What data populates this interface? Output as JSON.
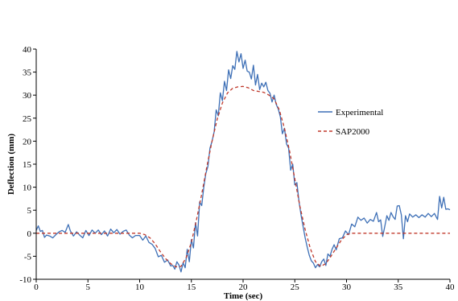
{
  "chart_data": {
    "type": "line",
    "title": "",
    "xlabel": "Time (sec)",
    "ylabel": "Deflection (mm)",
    "xlim": [
      0,
      40
    ],
    "ylim": [
      -10,
      40
    ],
    "x_ticks": [
      0,
      5,
      10,
      15,
      20,
      25,
      30,
      35,
      40
    ],
    "y_ticks": [
      -10,
      -5,
      0,
      5,
      10,
      15,
      20,
      25,
      30,
      35,
      40
    ],
    "grid": false,
    "legend_position": "right",
    "series": [
      {
        "name": "Experimental",
        "color": "#3d6fb6",
        "style": "solid",
        "points": [
          [
            0.0,
            0.6
          ],
          [
            0.2,
            1.6
          ],
          [
            0.4,
            0.4
          ],
          [
            0.6,
            0.6
          ],
          [
            0.8,
            -0.9
          ],
          [
            1.0,
            -0.4
          ],
          [
            1.3,
            -0.6
          ],
          [
            1.6,
            -1.0
          ],
          [
            1.9,
            -0.3
          ],
          [
            2.2,
            0.3
          ],
          [
            2.5,
            0.6
          ],
          [
            2.8,
            0.2
          ],
          [
            3.1,
            1.9
          ],
          [
            3.3,
            0.5
          ],
          [
            3.6,
            -0.6
          ],
          [
            3.9,
            0.3
          ],
          [
            4.2,
            -0.4
          ],
          [
            4.5,
            -1.0
          ],
          [
            4.8,
            0.6
          ],
          [
            5.1,
            -0.5
          ],
          [
            5.4,
            0.7
          ],
          [
            5.7,
            0.0
          ],
          [
            6.0,
            0.7
          ],
          [
            6.3,
            -0.3
          ],
          [
            6.6,
            0.5
          ],
          [
            6.9,
            -0.6
          ],
          [
            7.2,
            0.9
          ],
          [
            7.5,
            0.1
          ],
          [
            7.8,
            0.8
          ],
          [
            8.1,
            -0.2
          ],
          [
            8.4,
            0.4
          ],
          [
            8.7,
            0.7
          ],
          [
            9.0,
            -0.4
          ],
          [
            9.3,
            -1.0
          ],
          [
            9.6,
            -0.5
          ],
          [
            10.0,
            -0.5
          ],
          [
            10.3,
            -1.5
          ],
          [
            10.6,
            -0.6
          ],
          [
            10.9,
            -2.0
          ],
          [
            11.2,
            -2.4
          ],
          [
            11.5,
            -3.3
          ],
          [
            11.8,
            -5.1
          ],
          [
            12.1,
            -4.8
          ],
          [
            12.4,
            -6.3
          ],
          [
            12.7,
            -5.8
          ],
          [
            13.0,
            -7.1
          ],
          [
            13.2,
            -7.0
          ],
          [
            13.4,
            -7.8
          ],
          [
            13.6,
            -6.2
          ],
          [
            13.8,
            -6.9
          ],
          [
            14.0,
            -8.4
          ],
          [
            14.2,
            -6.4
          ],
          [
            14.4,
            -7.5
          ],
          [
            14.6,
            -3.5
          ],
          [
            14.8,
            -6.2
          ],
          [
            15.0,
            -1.4
          ],
          [
            15.2,
            -3.2
          ],
          [
            15.4,
            2.3
          ],
          [
            15.6,
            -0.6
          ],
          [
            15.8,
            6.8
          ],
          [
            16.0,
            6.0
          ],
          [
            16.2,
            10.0
          ],
          [
            16.4,
            13.0
          ],
          [
            16.6,
            14.5
          ],
          [
            16.8,
            18.5
          ],
          [
            17.0,
            20.0
          ],
          [
            17.2,
            22.0
          ],
          [
            17.4,
            26.8
          ],
          [
            17.6,
            25.5
          ],
          [
            17.8,
            30.5
          ],
          [
            18.0,
            28.8
          ],
          [
            18.2,
            33.0
          ],
          [
            18.4,
            31.0
          ],
          [
            18.6,
            35.5
          ],
          [
            18.8,
            33.6
          ],
          [
            19.0,
            36.4
          ],
          [
            19.2,
            35.6
          ],
          [
            19.4,
            39.5
          ],
          [
            19.6,
            37.2
          ],
          [
            19.8,
            39.0
          ],
          [
            20.0,
            35.8
          ],
          [
            20.2,
            37.6
          ],
          [
            20.4,
            35.2
          ],
          [
            20.6,
            35.0
          ],
          [
            20.8,
            33.5
          ],
          [
            21.0,
            36.5
          ],
          [
            21.2,
            32.2
          ],
          [
            21.4,
            34.5
          ],
          [
            21.6,
            31.2
          ],
          [
            21.8,
            32.6
          ],
          [
            22.0,
            31.8
          ],
          [
            22.2,
            32.8
          ],
          [
            22.4,
            31.0
          ],
          [
            22.6,
            30.4
          ],
          [
            22.8,
            28.5
          ],
          [
            23.0,
            30.0
          ],
          [
            23.2,
            28.0
          ],
          [
            23.4,
            27.0
          ],
          [
            23.6,
            25.3
          ],
          [
            23.8,
            21.6
          ],
          [
            24.0,
            22.8
          ],
          [
            24.2,
            19.4
          ],
          [
            24.4,
            18.5
          ],
          [
            24.6,
            13.7
          ],
          [
            24.8,
            15.0
          ],
          [
            25.0,
            10.5
          ],
          [
            25.2,
            11.0
          ],
          [
            25.4,
            7.0
          ],
          [
            25.6,
            4.0
          ],
          [
            25.8,
            1.5
          ],
          [
            26.0,
            -1.0
          ],
          [
            26.2,
            -3.0
          ],
          [
            26.4,
            -4.8
          ],
          [
            26.6,
            -6.0
          ],
          [
            26.8,
            -6.5
          ],
          [
            27.0,
            -7.5
          ],
          [
            27.2,
            -6.8
          ],
          [
            27.4,
            -7.3
          ],
          [
            27.6,
            -6.2
          ],
          [
            27.8,
            -5.6
          ],
          [
            28.0,
            -7.0
          ],
          [
            28.2,
            -4.5
          ],
          [
            28.4,
            -5.0
          ],
          [
            28.6,
            -3.5
          ],
          [
            28.8,
            -2.5
          ],
          [
            29.0,
            -3.6
          ],
          [
            29.3,
            -1.2
          ],
          [
            29.6,
            -1.0
          ],
          [
            29.9,
            0.5
          ],
          [
            30.2,
            -0.3
          ],
          [
            30.5,
            2.0
          ],
          [
            30.8,
            1.4
          ],
          [
            31.1,
            3.5
          ],
          [
            31.4,
            2.8
          ],
          [
            31.7,
            3.3
          ],
          [
            32.0,
            2.2
          ],
          [
            32.3,
            3.0
          ],
          [
            32.6,
            2.6
          ],
          [
            32.9,
            4.5
          ],
          [
            33.1,
            2.5
          ],
          [
            33.3,
            2.9
          ],
          [
            33.5,
            -0.7
          ],
          [
            33.7,
            1.5
          ],
          [
            33.9,
            3.8
          ],
          [
            34.1,
            2.8
          ],
          [
            34.3,
            4.5
          ],
          [
            34.5,
            3.6
          ],
          [
            34.7,
            3.0
          ],
          [
            34.9,
            5.9
          ],
          [
            35.1,
            6.0
          ],
          [
            35.3,
            4.0
          ],
          [
            35.5,
            -1.2
          ],
          [
            35.7,
            3.8
          ],
          [
            35.9,
            2.5
          ],
          [
            36.1,
            4.2
          ],
          [
            36.4,
            3.5
          ],
          [
            36.7,
            4.0
          ],
          [
            37.0,
            3.4
          ],
          [
            37.3,
            4.0
          ],
          [
            37.6,
            3.5
          ],
          [
            37.9,
            4.3
          ],
          [
            38.2,
            3.6
          ],
          [
            38.5,
            4.3
          ],
          [
            38.8,
            3.0
          ],
          [
            39.0,
            8.0
          ],
          [
            39.2,
            5.5
          ],
          [
            39.4,
            7.8
          ],
          [
            39.6,
            5.2
          ],
          [
            39.8,
            5.3
          ],
          [
            40.0,
            5.1
          ]
        ]
      },
      {
        "name": "SAP2000",
        "color": "#c0392b",
        "style": "dashed",
        "points": [
          [
            0.0,
            0.0
          ],
          [
            1.0,
            0.0
          ],
          [
            2.0,
            0.0
          ],
          [
            3.0,
            0.0
          ],
          [
            4.0,
            0.0
          ],
          [
            5.0,
            0.0
          ],
          [
            6.0,
            0.0
          ],
          [
            7.0,
            0.0
          ],
          [
            8.0,
            0.0
          ],
          [
            9.0,
            0.0
          ],
          [
            10.0,
            0.0
          ],
          [
            10.5,
            -0.3
          ],
          [
            11.0,
            -1.0
          ],
          [
            11.5,
            -2.3
          ],
          [
            12.0,
            -4.0
          ],
          [
            12.5,
            -5.5
          ],
          [
            13.0,
            -6.6
          ],
          [
            13.5,
            -7.3
          ],
          [
            14.0,
            -7.2
          ],
          [
            14.5,
            -5.3
          ],
          [
            15.0,
            -2.0
          ],
          [
            15.5,
            3.0
          ],
          [
            16.0,
            8.5
          ],
          [
            16.5,
            14.5
          ],
          [
            17.0,
            20.0
          ],
          [
            17.5,
            24.8
          ],
          [
            18.0,
            28.3
          ],
          [
            18.5,
            30.5
          ],
          [
            19.0,
            31.5
          ],
          [
            19.5,
            31.8
          ],
          [
            20.0,
            31.9
          ],
          [
            20.5,
            31.6
          ],
          [
            21.0,
            31.0
          ],
          [
            21.5,
            30.8
          ],
          [
            22.0,
            30.6
          ],
          [
            22.5,
            30.0
          ],
          [
            23.0,
            29.2
          ],
          [
            23.5,
            26.8
          ],
          [
            24.0,
            22.8
          ],
          [
            24.5,
            17.8
          ],
          [
            25.0,
            11.8
          ],
          [
            25.5,
            5.8
          ],
          [
            26.0,
            0.8
          ],
          [
            26.5,
            -3.3
          ],
          [
            27.0,
            -6.2
          ],
          [
            27.5,
            -7.2
          ],
          [
            28.0,
            -6.6
          ],
          [
            28.5,
            -5.0
          ],
          [
            29.0,
            -3.2
          ],
          [
            29.5,
            -1.5
          ],
          [
            30.0,
            -0.3
          ],
          [
            30.5,
            0.0
          ],
          [
            31.0,
            0.0
          ],
          [
            32.0,
            0.0
          ],
          [
            33.0,
            0.0
          ],
          [
            34.0,
            0.0
          ],
          [
            35.0,
            0.0
          ],
          [
            36.0,
            0.0
          ],
          [
            37.0,
            0.0
          ],
          [
            38.0,
            0.0
          ],
          [
            39.0,
            0.0
          ],
          [
            40.0,
            0.0
          ]
        ]
      }
    ]
  }
}
